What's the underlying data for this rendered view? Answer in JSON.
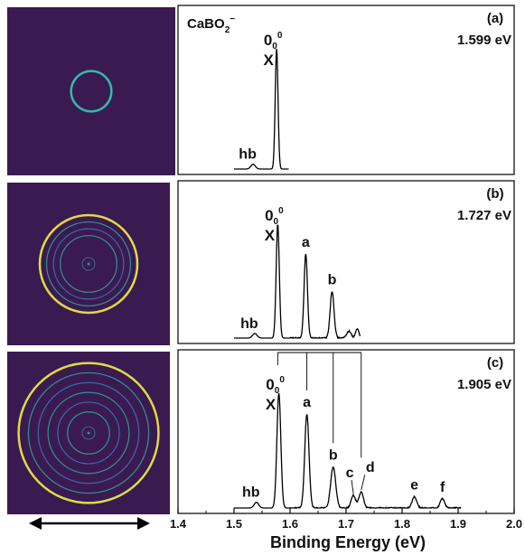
{
  "figure": {
    "molecule": "CaBO",
    "molecule_sub": "2",
    "molecule_sup": "−",
    "xaxis": {
      "title": "Binding Energy (eV)",
      "ticks": [
        "1.4",
        "1.5",
        "1.6",
        "1.7",
        "1.8",
        "1.9",
        "2.0"
      ]
    }
  },
  "chart_data": [
    {
      "type": "line",
      "panel": "(a)",
      "photon_energy": "1.599 eV",
      "xlim": [
        1.4,
        2.0
      ],
      "data_end": 1.598,
      "peaks": [
        {
          "x": 1.534,
          "height": 0.04,
          "width": 0.004,
          "label": "hb"
        },
        {
          "x": 1.576,
          "height": 1.0,
          "width": 0.0025,
          "label": "X",
          "origin_label": true
        }
      ],
      "image_ring": {
        "radius_fraction": 0.12,
        "rings": 1
      }
    },
    {
      "type": "line",
      "panel": "(b)",
      "photon_energy": "1.727 eV",
      "xlim": [
        1.4,
        2.0
      ],
      "data_end": 1.726,
      "peaks": [
        {
          "x": 1.537,
          "height": 0.04,
          "width": 0.004,
          "label": "hb"
        },
        {
          "x": 1.578,
          "height": 1.0,
          "width": 0.0028,
          "label": "X",
          "origin_label": true
        },
        {
          "x": 1.628,
          "height": 0.74,
          "width": 0.003,
          "label": "a"
        },
        {
          "x": 1.675,
          "height": 0.41,
          "width": 0.0035,
          "label": "b"
        },
        {
          "x": 1.705,
          "height": 0.06,
          "width": 0.004,
          "label": ""
        },
        {
          "x": 1.72,
          "height": 0.08,
          "width": 0.003,
          "label": ""
        }
      ],
      "image_ring": {
        "radius_fraction": 0.3,
        "rings": 4
      }
    },
    {
      "type": "line",
      "panel": "(c)",
      "photon_energy": "1.905 eV",
      "xlim": [
        1.4,
        2.0
      ],
      "data_end": 1.905,
      "peaks": [
        {
          "x": 1.54,
          "height": 0.05,
          "width": 0.004,
          "label": "hb"
        },
        {
          "x": 1.58,
          "height": 1.0,
          "width": 0.0035,
          "label": "X",
          "origin_label": true
        },
        {
          "x": 1.63,
          "height": 0.82,
          "width": 0.0038,
          "label": "a"
        },
        {
          "x": 1.677,
          "height": 0.36,
          "width": 0.0045,
          "label": "b"
        },
        {
          "x": 1.713,
          "height": 0.11,
          "width": 0.004,
          "label": "c"
        },
        {
          "x": 1.727,
          "height": 0.14,
          "width": 0.004,
          "label": "d"
        },
        {
          "x": 1.822,
          "height": 0.1,
          "width": 0.004,
          "label": "e"
        },
        {
          "x": 1.872,
          "height": 0.08,
          "width": 0.004,
          "label": "f"
        }
      ],
      "progression_lines": [
        1.63,
        1.677,
        1.727
      ],
      "image_ring": {
        "radius_fraction": 0.43,
        "rings": 6
      }
    }
  ],
  "colors": {
    "image_bg": "#3b1a52",
    "ring_yellow": "#e8e545",
    "ring_teal": "#2ec5b0",
    "ring_blue": "#3a8fc8",
    "line": "#000000"
  }
}
